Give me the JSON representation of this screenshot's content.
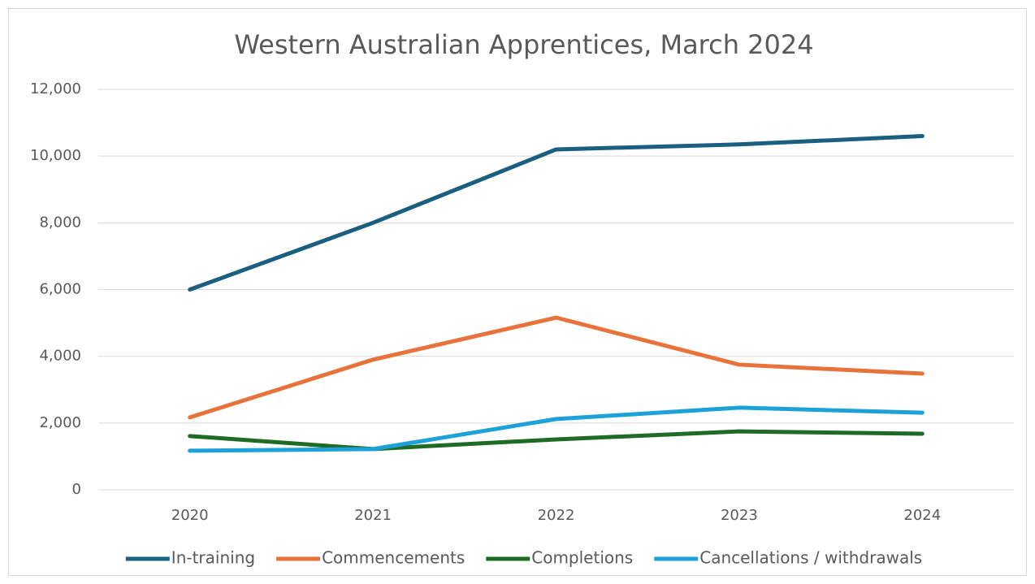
{
  "chart_data": {
    "type": "line",
    "title": "Western Australian Apprentices, March 2024",
    "categories": [
      "2020",
      "2021",
      "2022",
      "2023",
      "2024"
    ],
    "series": [
      {
        "name": "In-training",
        "color": "#1b5f80",
        "values": [
          6000,
          8000,
          10200,
          10350,
          10600
        ]
      },
      {
        "name": "Commencements",
        "color": "#e8733a",
        "values": [
          2170,
          3900,
          5160,
          3750,
          3480
        ]
      },
      {
        "name": "Completions",
        "color": "#1f6b26",
        "values": [
          1610,
          1220,
          1510,
          1750,
          1680
        ]
      },
      {
        "name": "Cancellations / withdrawals",
        "color": "#1ca2d9",
        "values": [
          1170,
          1220,
          2120,
          2460,
          2310
        ]
      }
    ],
    "ylim": [
      0,
      12000
    ],
    "yticks": [
      0,
      {
        "value": 2000,
        "label": "2,000"
      },
      {
        "value": 4000,
        "label": "4,000"
      },
      {
        "value": 6000,
        "label": "6,000"
      },
      {
        "value": 8000,
        "label": "8,000"
      },
      {
        "value": 10000,
        "label": "10,000"
      },
      {
        "value": 12000,
        "label": "12,000"
      }
    ],
    "grid": true,
    "legend": "bottom"
  }
}
